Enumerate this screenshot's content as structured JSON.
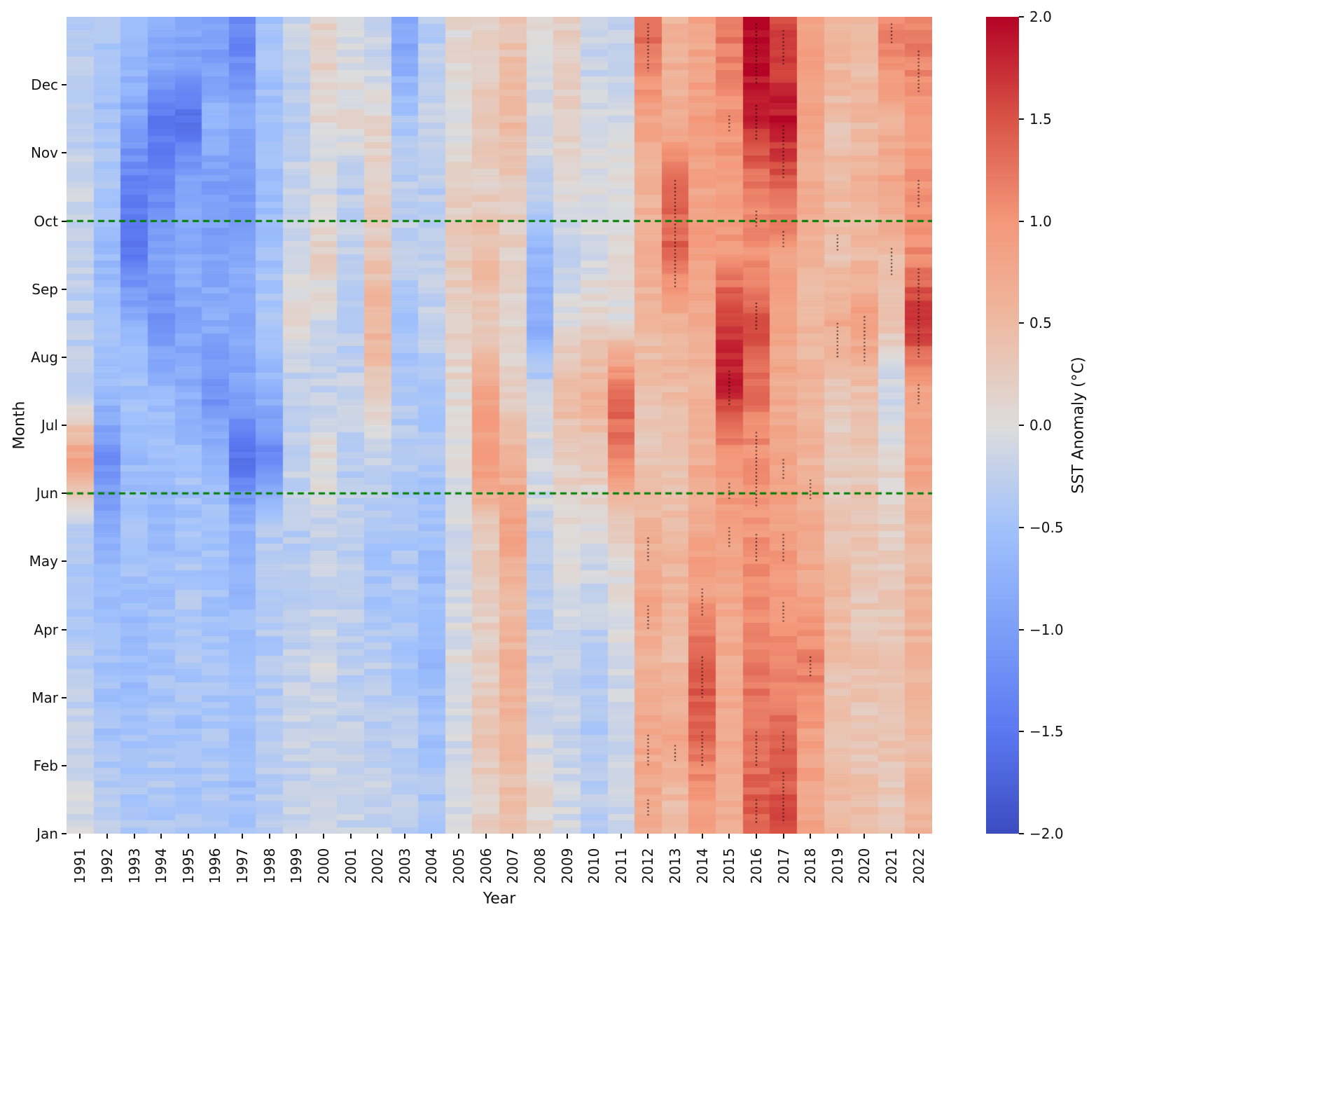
{
  "chart_data": {
    "type": "heatmap",
    "xlabel": "Year",
    "ylabel": "Month",
    "colorbar_label": "SST Anomaly (°C)",
    "vmin": -2.0,
    "vmax": 2.0,
    "colorbar_ticks": [
      2.0,
      1.5,
      1.0,
      0.5,
      0.0,
      -0.5,
      -1.0,
      -1.5,
      -2.0
    ],
    "years": [
      1991,
      1992,
      1993,
      1994,
      1995,
      1996,
      1997,
      1998,
      1999,
      2000,
      2001,
      2002,
      2003,
      2004,
      2005,
      2006,
      2007,
      2008,
      2009,
      2010,
      2011,
      2012,
      2013,
      2014,
      2015,
      2016,
      2017,
      2018,
      2019,
      2020,
      2021,
      2022
    ],
    "months": [
      "Jan",
      "Feb",
      "Mar",
      "Apr",
      "May",
      "Jun",
      "Jul",
      "Aug",
      "Sep",
      "Oct",
      "Nov",
      "Dec"
    ],
    "values": [
      [
        -0.1,
        -0.2,
        -0.3,
        -0.4,
        -0.3,
        0.9,
        -0.2,
        -0.3,
        -0.2,
        -0.1,
        -0.3,
        -0.3
      ],
      [
        -0.3,
        -0.5,
        -0.5,
        -0.6,
        -0.8,
        -1.2,
        -0.6,
        -0.5,
        -0.6,
        -0.4,
        -0.5,
        -0.4
      ],
      [
        -0.4,
        -0.5,
        -0.6,
        -0.5,
        -0.5,
        -0.6,
        -0.5,
        -0.7,
        -1.5,
        -1.4,
        -0.9,
        -0.6
      ],
      [
        -0.4,
        -0.4,
        -0.5,
        -0.5,
        -0.6,
        -0.5,
        -0.6,
        -1.2,
        -0.9,
        -1.3,
        -1.5,
        -0.8
      ],
      [
        -0.4,
        -0.5,
        -0.4,
        -0.4,
        -0.5,
        -0.5,
        -0.8,
        -0.9,
        -0.8,
        -0.9,
        -1.6,
        -0.9
      ],
      [
        -0.4,
        -0.4,
        -0.5,
        -0.5,
        -0.5,
        -0.6,
        -1.2,
        -0.8,
        -0.9,
        -1.0,
        -0.7,
        -1.0
      ],
      [
        -0.5,
        -0.6,
        -0.5,
        -0.6,
        -0.7,
        -1.6,
        -0.9,
        -0.9,
        -0.8,
        -1.1,
        -0.8,
        -1.3
      ],
      [
        -0.3,
        -0.3,
        -0.4,
        -0.3,
        -0.4,
        -1.3,
        -0.7,
        -0.4,
        -0.5,
        -0.6,
        -0.5,
        -0.5
      ],
      [
        -0.2,
        -0.2,
        -0.2,
        -0.3,
        -0.3,
        -0.2,
        -0.3,
        0.1,
        -0.1,
        -0.2,
        -0.3,
        -0.2
      ],
      [
        -0.1,
        -0.2,
        -0.1,
        -0.2,
        -0.2,
        0.1,
        -0.2,
        -0.1,
        0.2,
        -0.1,
        0.1,
        0.2
      ],
      [
        -0.2,
        -0.2,
        -0.3,
        -0.2,
        -0.3,
        -0.3,
        -0.2,
        -0.3,
        -0.2,
        -0.3,
        0.1,
        -0.1
      ],
      [
        -0.2,
        -0.3,
        -0.3,
        -0.5,
        -0.4,
        -0.2,
        0.3,
        0.6,
        0.3,
        0.2,
        0.1,
        -0.2
      ],
      [
        -0.3,
        -0.3,
        -0.4,
        -0.4,
        -0.4,
        -0.3,
        -0.4,
        -0.5,
        -0.2,
        -0.3,
        -0.4,
        -0.9
      ],
      [
        -0.4,
        -0.5,
        -0.6,
        -0.6,
        -0.5,
        -0.4,
        -0.4,
        -0.2,
        -0.3,
        -0.3,
        -0.2,
        -0.3
      ],
      [
        -0.1,
        -0.1,
        0.0,
        -0.1,
        -0.1,
        0.0,
        0.1,
        0.2,
        0.3,
        0.2,
        0.0,
        0.1
      ],
      [
        0.2,
        0.3,
        0.2,
        0.2,
        0.3,
        1.0,
        0.8,
        0.3,
        0.5,
        0.2,
        0.3,
        0.2
      ],
      [
        0.4,
        0.6,
        0.6,
        0.5,
        0.9,
        0.6,
        0.2,
        0.1,
        0.2,
        0.3,
        0.5,
        0.4
      ],
      [
        0.1,
        -0.1,
        -0.2,
        -0.3,
        -0.2,
        0.0,
        -0.2,
        -0.8,
        -0.7,
        -0.2,
        -0.1,
        0.0
      ],
      [
        -0.1,
        -0.2,
        -0.2,
        -0.1,
        0.1,
        0.2,
        0.5,
        0.0,
        -0.2,
        0.1,
        0.2,
        0.2
      ],
      [
        -0.3,
        -0.4,
        -0.3,
        -0.2,
        0.0,
        0.3,
        0.6,
        0.2,
        -0.1,
        0.0,
        -0.1,
        -0.2
      ],
      [
        -0.2,
        -0.2,
        -0.1,
        0.0,
        0.2,
        1.2,
        1.4,
        0.0,
        0.1,
        0.0,
        -0.1,
        -0.2
      ],
      [
        0.7,
        0.8,
        0.6,
        0.8,
        0.6,
        0.3,
        0.4,
        0.5,
        0.7,
        0.6,
        0.8,
        1.3
      ],
      [
        0.5,
        0.8,
        0.5,
        0.6,
        0.5,
        0.4,
        0.5,
        0.6,
        1.4,
        1.3,
        0.7,
        0.6
      ],
      [
        0.9,
        1.4,
        1.5,
        0.9,
        0.8,
        0.7,
        0.6,
        0.7,
        0.9,
        0.8,
        0.9,
        0.8
      ],
      [
        0.7,
        0.8,
        0.7,
        0.8,
        0.9,
        1.0,
        1.8,
        1.7,
        1.0,
        0.9,
        1.0,
        1.2
      ],
      [
        1.4,
        1.3,
        1.2,
        1.1,
        1.0,
        1.0,
        1.3,
        1.5,
        1.0,
        1.2,
        1.8,
        2.0
      ],
      [
        1.5,
        1.3,
        1.1,
        1.0,
        0.9,
        0.8,
        0.7,
        0.8,
        0.9,
        1.4,
        1.9,
        1.6
      ],
      [
        0.8,
        0.9,
        1.2,
        0.8,
        0.7,
        0.6,
        0.6,
        0.5,
        0.6,
        0.7,
        0.8,
        0.9
      ],
      [
        0.5,
        0.4,
        0.4,
        0.5,
        0.4,
        0.2,
        0.3,
        0.7,
        0.4,
        0.5,
        0.4,
        0.6
      ],
      [
        0.4,
        0.3,
        0.4,
        0.3,
        0.4,
        0.3,
        0.4,
        0.9,
        0.5,
        0.6,
        0.5,
        0.5
      ],
      [
        0.3,
        0.4,
        0.3,
        0.3,
        0.2,
        0.1,
        -0.2,
        0.4,
        0.5,
        0.8,
        0.6,
        1.1
      ],
      [
        0.6,
        0.5,
        0.6,
        0.6,
        0.5,
        0.9,
        0.8,
        1.8,
        1.1,
        1.0,
        0.9,
        1.2
      ]
    ],
    "colormap": {
      "name": "coolwarm",
      "stops": [
        [
          0.0,
          [
            59,
            76,
            192
          ]
        ],
        [
          0.125,
          [
            91,
            120,
            241
          ]
        ],
        [
          0.25,
          [
            124,
            159,
            248
          ]
        ],
        [
          0.375,
          [
            162,
            194,
            252
          ]
        ],
        [
          0.5,
          [
            221,
            220,
            220
          ]
        ],
        [
          0.625,
          [
            238,
            186,
            162
          ]
        ],
        [
          0.75,
          [
            244,
            152,
            122
          ]
        ],
        [
          0.875,
          [
            217,
            84,
            69
          ]
        ],
        [
          1.0,
          [
            180,
            4,
            38
          ]
        ]
      ]
    },
    "reference_lines": [
      {
        "month": "Jun",
        "style": "dashed",
        "color": "#008000"
      },
      {
        "month": "Oct",
        "style": "dashed",
        "color": "#008000"
      }
    ],
    "stipple_segments": [
      {
        "year": 2012,
        "from": 11.2,
        "to": 11.9
      },
      {
        "year": 2012,
        "from": 4.0,
        "to": 4.35
      },
      {
        "year": 2012,
        "from": 3.0,
        "to": 3.35
      },
      {
        "year": 2012,
        "from": 1.0,
        "to": 1.45
      },
      {
        "year": 2012,
        "from": 0.25,
        "to": 0.5
      },
      {
        "year": 2013,
        "from": 8.0,
        "to": 9.6
      },
      {
        "year": 2013,
        "from": 1.05,
        "to": 1.3
      },
      {
        "year": 2014,
        "from": 3.2,
        "to": 3.6
      },
      {
        "year": 2014,
        "from": 2.0,
        "to": 2.6
      },
      {
        "year": 2014,
        "from": 1.0,
        "to": 1.5
      },
      {
        "year": 2015,
        "from": 10.3,
        "to": 10.55
      },
      {
        "year": 2015,
        "from": 6.3,
        "to": 6.8
      },
      {
        "year": 2015,
        "from": 4.9,
        "to": 5.15
      },
      {
        "year": 2015,
        "from": 4.2,
        "to": 4.5
      },
      {
        "year": 2016,
        "from": 11.0,
        "to": 11.9
      },
      {
        "year": 2016,
        "from": 10.2,
        "to": 10.7
      },
      {
        "year": 2016,
        "from": 8.9,
        "to": 9.15
      },
      {
        "year": 2016,
        "from": 7.4,
        "to": 7.8
      },
      {
        "year": 2016,
        "from": 4.8,
        "to": 5.9
      },
      {
        "year": 2016,
        "from": 4.0,
        "to": 4.4
      },
      {
        "year": 2016,
        "from": 1.0,
        "to": 1.5
      },
      {
        "year": 2016,
        "from": 0.15,
        "to": 0.5
      },
      {
        "year": 2017,
        "from": 11.3,
        "to": 11.8
      },
      {
        "year": 2017,
        "from": 9.6,
        "to": 10.4
      },
      {
        "year": 2017,
        "from": 8.6,
        "to": 8.85
      },
      {
        "year": 2017,
        "from": 5.2,
        "to": 5.5
      },
      {
        "year": 2017,
        "from": 4.0,
        "to": 4.4
      },
      {
        "year": 2017,
        "from": 3.1,
        "to": 3.4
      },
      {
        "year": 2017,
        "from": 1.2,
        "to": 1.5
      },
      {
        "year": 2017,
        "from": 0.15,
        "to": 0.9
      },
      {
        "year": 2018,
        "from": 4.9,
        "to": 5.2
      },
      {
        "year": 2018,
        "from": 2.3,
        "to": 2.6
      },
      {
        "year": 2019,
        "from": 8.55,
        "to": 8.8
      },
      {
        "year": 2019,
        "from": 7.0,
        "to": 7.5
      },
      {
        "year": 2020,
        "from": 6.9,
        "to": 7.6
      },
      {
        "year": 2021,
        "from": 11.6,
        "to": 11.9
      },
      {
        "year": 2021,
        "from": 8.2,
        "to": 8.6
      },
      {
        "year": 2022,
        "from": 10.9,
        "to": 11.5
      },
      {
        "year": 2022,
        "from": 9.2,
        "to": 9.6
      },
      {
        "year": 2022,
        "from": 7.0,
        "to": 8.3
      },
      {
        "year": 2022,
        "from": 6.3,
        "to": 6.6
      }
    ],
    "texture_amplitude": 0.13,
    "layout": {
      "grid": false,
      "colorbar_position": "right",
      "x_tick_rotation": 90,
      "background": "#ffffff"
    }
  }
}
